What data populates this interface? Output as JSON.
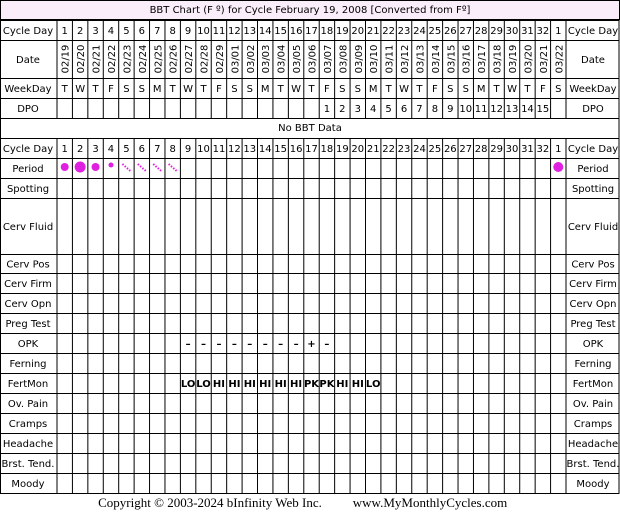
{
  "title": "BBT Chart (F º) for Cycle February 19, 2008  [Converted from Fº]",
  "header": {
    "cycle_day_label": "Cycle Day",
    "cycle_days": [
      1,
      2,
      3,
      4,
      5,
      6,
      7,
      8,
      9,
      10,
      11,
      12,
      13,
      14,
      15,
      16,
      17,
      18,
      19,
      20,
      21,
      22,
      23,
      24,
      25,
      26,
      27,
      28,
      29,
      30,
      31,
      32,
      1
    ],
    "date_label": "Date",
    "dates": [
      "02/19",
      "02/20",
      "02/21",
      "02/22",
      "02/23",
      "02/24",
      "02/25",
      "02/26",
      "02/27",
      "02/28",
      "02/29",
      "03/01",
      "03/02",
      "03/03",
      "03/04",
      "03/05",
      "03/06",
      "03/07",
      "03/08",
      "03/09",
      "03/10",
      "03/11",
      "03/12",
      "03/13",
      "03/14",
      "03/15",
      "03/16",
      "03/17",
      "03/18",
      "03/19",
      "03/20",
      "03/21",
      "03/22"
    ],
    "weekday_label": "WeekDay",
    "weekdays": [
      "T",
      "W",
      "T",
      "F",
      "S",
      "S",
      "M",
      "T",
      "W",
      "T",
      "F",
      "S",
      "S",
      "M",
      "T",
      "W",
      "T",
      "F",
      "S",
      "S",
      "M",
      "T",
      "W",
      "T",
      "F",
      "S",
      "S",
      "M",
      "T",
      "W",
      "T",
      "F",
      "S"
    ],
    "dpo_label": "DPO",
    "dpo": [
      null,
      null,
      null,
      null,
      null,
      null,
      null,
      null,
      null,
      null,
      null,
      null,
      null,
      null,
      null,
      null,
      null,
      1,
      2,
      3,
      4,
      5,
      6,
      7,
      8,
      9,
      10,
      11,
      12,
      13,
      14,
      15,
      null
    ]
  },
  "notice": "No BBT Data",
  "rows": [
    {
      "label": "Period"
    },
    {
      "label": "Spotting"
    },
    {
      "label": "Cerv Fluid"
    },
    {
      "label": "Cerv Pos"
    },
    {
      "label": "Cerv Firm"
    },
    {
      "label": "Cerv Opn"
    },
    {
      "label": "Preg Test"
    },
    {
      "label": "OPK",
      "cells": [
        null,
        null,
        null,
        null,
        null,
        null,
        null,
        null,
        "–",
        "–",
        "–",
        "–",
        "–",
        "–",
        "–",
        "–",
        "+",
        "–",
        null,
        null,
        null,
        null,
        null,
        null,
        null,
        null,
        null,
        null,
        null,
        null,
        null,
        null,
        null
      ]
    },
    {
      "label": "Ferning"
    },
    {
      "label": "FertMon",
      "cells": [
        null,
        null,
        null,
        null,
        null,
        null,
        null,
        null,
        "LO",
        "LO",
        "HI",
        "HI",
        "HI",
        "HI",
        "HI",
        "HI",
        "PK",
        "PK",
        "HI",
        "HI",
        "LO",
        null,
        null,
        null,
        null,
        null,
        null,
        null,
        null,
        null,
        null,
        null,
        null
      ]
    },
    {
      "label": "Ov. Pain"
    },
    {
      "label": "Cramps"
    },
    {
      "label": "Headache"
    },
    {
      "label": "Brst. Tend."
    },
    {
      "label": "Moody"
    }
  ],
  "footer": {
    "copyright": "Copyright © 2003-2024 bInfinity Web Inc.",
    "website": "www.MyMonthlyCycles.com"
  }
}
